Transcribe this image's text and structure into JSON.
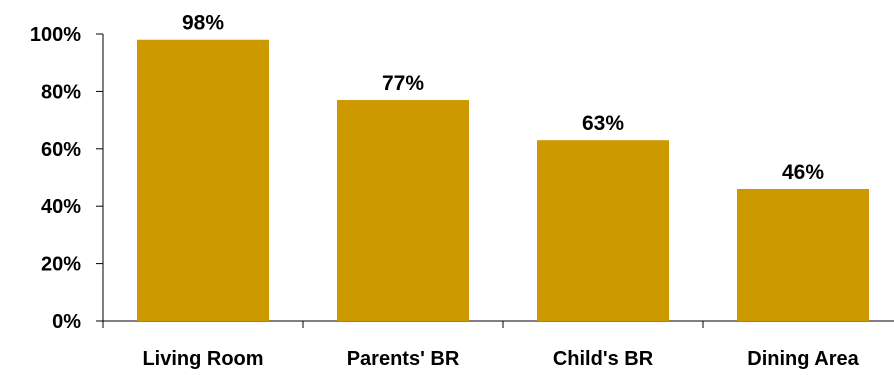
{
  "chart_data": {
    "type": "bar",
    "categories": [
      "Living Room",
      "Parents' BR",
      "Child's BR",
      "Dining Area"
    ],
    "values": [
      98,
      77,
      63,
      46
    ],
    "data_labels": [
      "98%",
      "77%",
      "63%",
      "46%"
    ],
    "title": "",
    "xlabel": "",
    "ylabel": "",
    "ylim": [
      0,
      100
    ],
    "yticks": [
      0,
      20,
      40,
      60,
      80,
      100
    ],
    "ytick_labels": [
      "0%",
      "20%",
      "40%",
      "60%",
      "80%",
      "100%"
    ],
    "grid": false,
    "legend": "none",
    "bar_color": "#CC9900"
  }
}
